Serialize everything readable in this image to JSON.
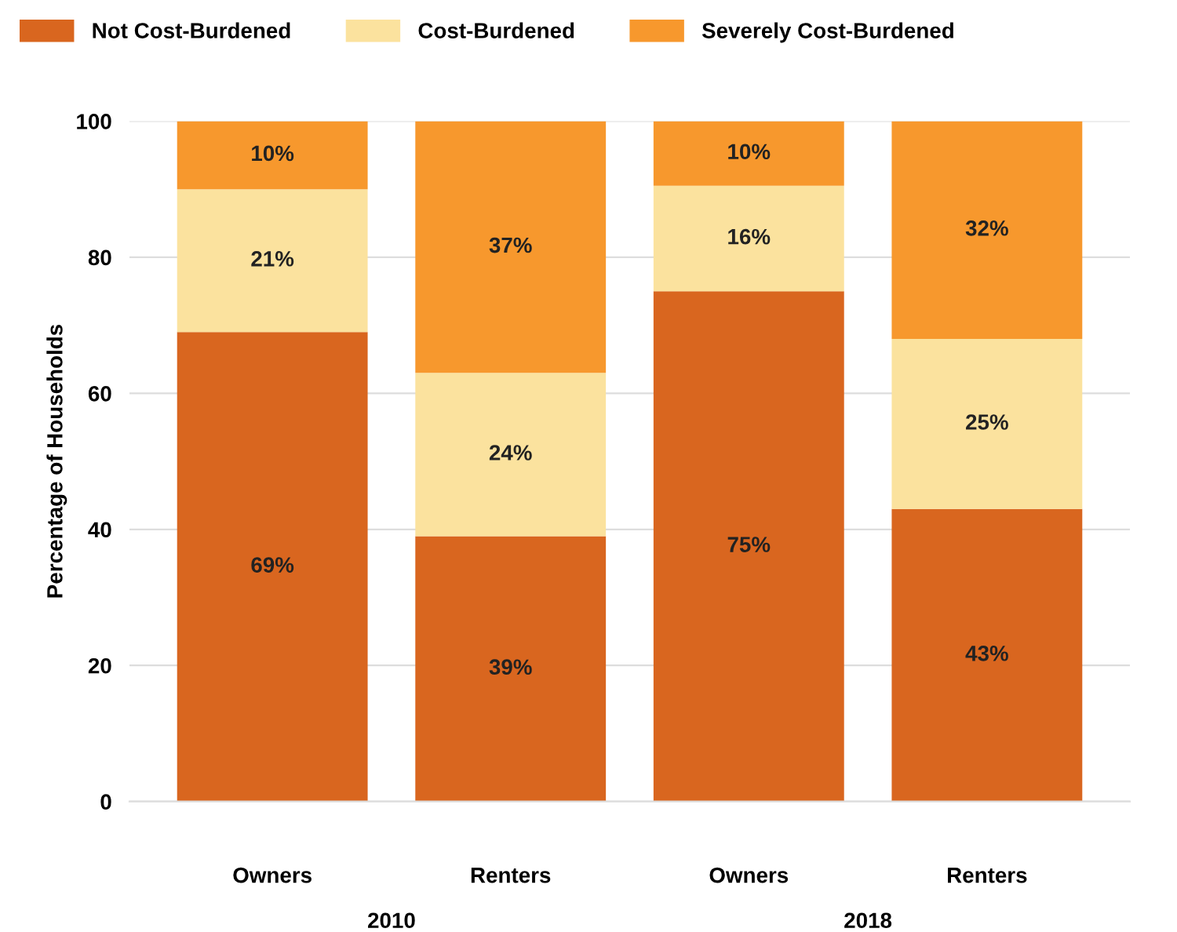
{
  "chart_data": {
    "type": "bar",
    "stacked": true,
    "categories": [
      "Owners",
      "Renters",
      "Owners",
      "Renters"
    ],
    "series": [
      {
        "name": "Not Cost-Burdened",
        "color": "#d9661f",
        "values": [
          69,
          39,
          75,
          43
        ],
        "value_labels": [
          "69%",
          "39%",
          "75%",
          "43%"
        ]
      },
      {
        "name": "Cost-Burdened",
        "color": "#fbe29e",
        "values": [
          21,
          24,
          15.5,
          25
        ],
        "value_labels": [
          "21%",
          "24%",
          "16%",
          "25%"
        ]
      },
      {
        "name": "Severely Cost-Burdened",
        "color": "#f7982d",
        "values": [
          10,
          37,
          9.5,
          32
        ],
        "value_labels": [
          "10%",
          "37%",
          "10%",
          "32%"
        ]
      }
    ],
    "ylabel": "Percentage of Households",
    "ylim": [
      0,
      100
    ],
    "yticks": [
      0,
      20,
      40,
      60,
      80,
      100
    ],
    "grid": "y",
    "legend": "top",
    "annotations": [
      "2010",
      "2018"
    ]
  }
}
